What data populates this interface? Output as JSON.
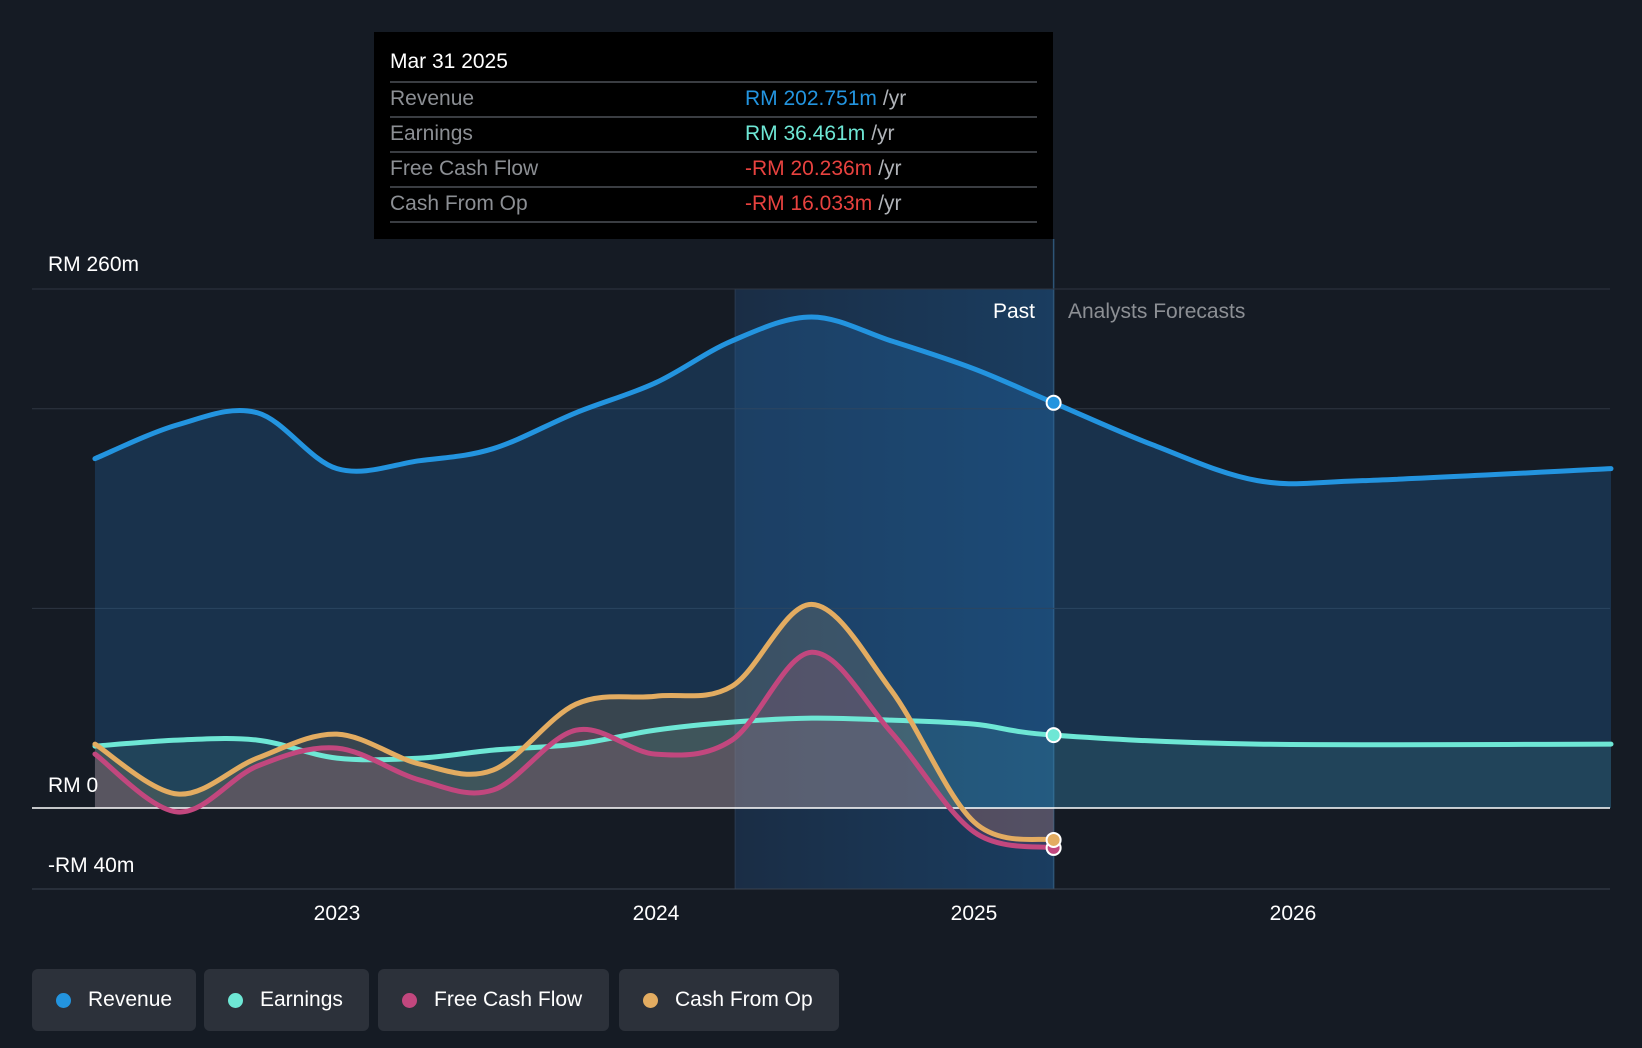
{
  "chart_data": {
    "type": "line",
    "title": "",
    "xlabel": "",
    "ylabel": "",
    "x_ticks": [
      "2023",
      "2024",
      "2025",
      "2026"
    ],
    "y_ticks": [
      "RM 260m",
      "RM 0",
      "-RM 40m"
    ],
    "ylim": [
      -40,
      260
    ],
    "xlim": [
      2022.0,
      2027.0
    ],
    "grid": true,
    "legend_position": "bottom-left",
    "regions": {
      "past_label": "Past",
      "forecast_label": "Analysts Forecasts",
      "past_highlight_start": 2024.25,
      "past_end": 2025.25
    },
    "series": [
      {
        "name": "Revenue",
        "color": "#2394df",
        "points": [
          [
            2022.24,
            175
          ],
          [
            2022.5,
            192
          ],
          [
            2022.75,
            198
          ],
          [
            2023.0,
            170
          ],
          [
            2023.26,
            174
          ],
          [
            2023.49,
            180
          ],
          [
            2023.75,
            198
          ],
          [
            2024.0,
            213
          ],
          [
            2024.24,
            234
          ],
          [
            2024.49,
            246
          ],
          [
            2024.74,
            234
          ],
          [
            2025.0,
            220
          ],
          [
            2025.25,
            203
          ],
          [
            2025.56,
            182
          ],
          [
            2025.89,
            164
          ],
          [
            2026.22,
            164
          ],
          [
            2027.0,
            170
          ]
        ]
      },
      {
        "name": "Earnings",
        "color": "#6ee7d5",
        "points": [
          [
            2022.24,
            31
          ],
          [
            2022.5,
            34
          ],
          [
            2022.75,
            34
          ],
          [
            2023.0,
            25
          ],
          [
            2023.26,
            25
          ],
          [
            2023.49,
            29
          ],
          [
            2023.75,
            32
          ],
          [
            2024.0,
            39
          ],
          [
            2024.24,
            43
          ],
          [
            2024.49,
            45
          ],
          [
            2024.74,
            44
          ],
          [
            2025.0,
            42
          ],
          [
            2025.25,
            36.5
          ],
          [
            2025.89,
            32
          ],
          [
            2027.0,
            32
          ]
        ]
      },
      {
        "name": "Free Cash Flow",
        "color": "#c2477e",
        "points": [
          [
            2022.24,
            27
          ],
          [
            2022.5,
            -2
          ],
          [
            2022.75,
            21
          ],
          [
            2023.0,
            30
          ],
          [
            2023.26,
            14
          ],
          [
            2023.49,
            9
          ],
          [
            2023.75,
            39
          ],
          [
            2024.0,
            27
          ],
          [
            2024.24,
            34
          ],
          [
            2024.49,
            78
          ],
          [
            2024.74,
            38
          ],
          [
            2025.0,
            -12
          ],
          [
            2025.25,
            -20
          ]
        ]
      },
      {
        "name": "Cash From Op",
        "color": "#e3ac61",
        "points": [
          [
            2022.24,
            32
          ],
          [
            2022.5,
            7
          ],
          [
            2022.75,
            25
          ],
          [
            2023.0,
            37
          ],
          [
            2023.26,
            22
          ],
          [
            2023.49,
            19
          ],
          [
            2023.75,
            52
          ],
          [
            2024.0,
            56
          ],
          [
            2024.24,
            61
          ],
          [
            2024.49,
            102
          ],
          [
            2024.74,
            59
          ],
          [
            2025.0,
            -7
          ],
          [
            2025.25,
            -16
          ]
        ]
      }
    ]
  },
  "tooltip": {
    "date": "Mar 31 2025",
    "rows": [
      {
        "label": "Revenue",
        "value": "RM 202.751m",
        "unit": "/yr",
        "color": "#2394df"
      },
      {
        "label": "Earnings",
        "value": "RM 36.461m",
        "unit": "/yr",
        "color": "#6ee7d5"
      },
      {
        "label": "Free Cash Flow",
        "value": "-RM 20.236m",
        "unit": "/yr",
        "color": "#e8423f"
      },
      {
        "label": "Cash From Op",
        "value": "-RM 16.033m",
        "unit": "/yr",
        "color": "#e8423f"
      }
    ]
  },
  "legend": [
    "Revenue",
    "Earnings",
    "Free Cash Flow",
    "Cash From Op"
  ]
}
